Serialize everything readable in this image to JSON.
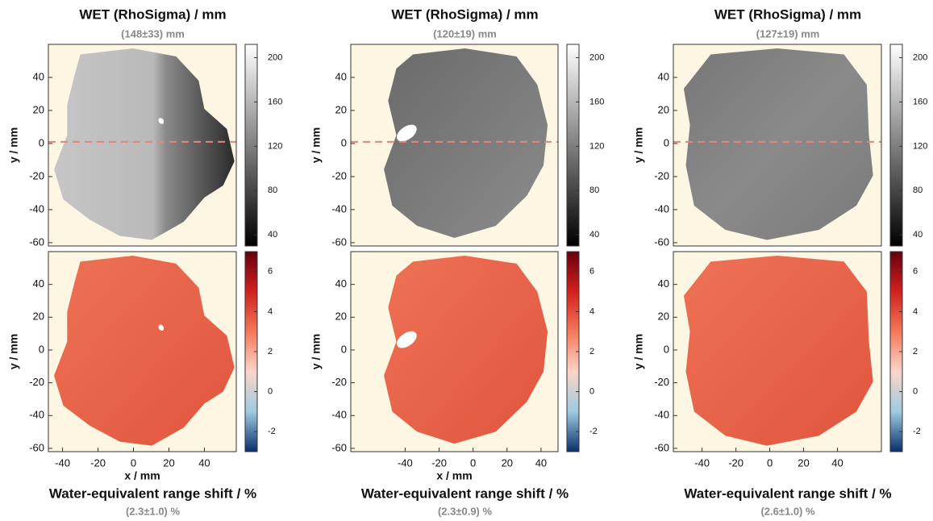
{
  "chart_data": [
    {
      "type": "heatmap",
      "title": "WET (RhoSigma) / mm",
      "subtitle": "(148±33) mm",
      "ylabel": "y / mm",
      "xlim": [
        -48,
        58
      ],
      "ylim": [
        -62,
        60
      ],
      "yticks": [
        -60,
        -40,
        -20,
        0,
        20,
        40
      ],
      "background": "#fdf6e3",
      "reference_line": {
        "y": 1,
        "color": "#e8837a"
      },
      "colorbar": {
        "clim": [
          30,
          212
        ],
        "ticks": [
          40,
          80,
          120,
          160,
          200
        ],
        "colors": [
          "#000000",
          "#ffffff"
        ]
      }
    },
    {
      "type": "heatmap",
      "title": "Water-equivalent range shift / %",
      "subtitle": "(2.3±1.0) %",
      "xlabel": "x / mm",
      "ylabel": "y / mm",
      "xlim": [
        -48,
        58
      ],
      "ylim": [
        -62,
        60
      ],
      "xticks": [
        -40,
        -20,
        0,
        20,
        40
      ],
      "yticks": [
        -60,
        -40,
        -20,
        0,
        20,
        40
      ],
      "background": "#fdf6e3",
      "colorbar": {
        "clim": [
          -3,
          7
        ],
        "ticks": [
          -2,
          0,
          2,
          4,
          6
        ],
        "colors": [
          "#08306b",
          "#9ecae1",
          "#fcd5c8",
          "#f4785a",
          "#d32020",
          "#67000d"
        ]
      }
    },
    {
      "type": "heatmap",
      "title": "WET (RhoSigma) / mm",
      "subtitle": "(120±19) mm",
      "ylabel": "y / mm",
      "xlim": [
        -72,
        50
      ],
      "ylim": [
        -62,
        60
      ],
      "yticks": [
        -60,
        -40,
        -20,
        0,
        20,
        40
      ],
      "background": "#fdf6e3",
      "reference_line": {
        "y": 1,
        "color": "#e8837a"
      },
      "colorbar": {
        "clim": [
          30,
          212
        ],
        "ticks": [
          40,
          80,
          120,
          160,
          200
        ],
        "colors": [
          "#000000",
          "#ffffff"
        ]
      }
    },
    {
      "type": "heatmap",
      "title": "Water-equivalent range shift / %",
      "subtitle": "(2.3±0.9) %",
      "xlabel": "x / mm",
      "ylabel": "y / mm",
      "xlim": [
        -72,
        50
      ],
      "ylim": [
        -62,
        60
      ],
      "xticks": [
        -40,
        -20,
        0,
        20,
        40
      ],
      "yticks": [
        -60,
        -40,
        -20,
        0,
        20,
        40
      ],
      "background": "#fdf6e3",
      "colorbar": {
        "clim": [
          -3,
          7
        ],
        "ticks": [
          -2,
          0,
          2,
          4,
          6
        ],
        "colors": [
          "#08306b",
          "#9ecae1",
          "#fcd5c8",
          "#f4785a",
          "#d32020",
          "#67000d"
        ]
      }
    },
    {
      "type": "heatmap",
      "title": "WET (RhoSigma) / mm",
      "subtitle": "(127±19) mm",
      "ylabel": "y / mm",
      "xlim": [
        -57,
        66
      ],
      "ylim": [
        -62,
        60
      ],
      "yticks": [
        -60,
        -40,
        -20,
        0,
        20,
        40
      ],
      "background": "#fdf6e3",
      "reference_line": {
        "y": 1,
        "color": "#e8837a"
      },
      "colorbar": {
        "clim": [
          30,
          212
        ],
        "ticks": [
          40,
          80,
          120,
          160,
          200
        ],
        "colors": [
          "#000000",
          "#ffffff"
        ]
      }
    },
    {
      "type": "heatmap",
      "title": "Water-equivalent range shift / %",
      "subtitle": "(2.6±1.0) %",
      "ylabel": "y / mm",
      "xlim": [
        -57,
        66
      ],
      "ylim": [
        -62,
        60
      ],
      "xticks": [
        -40,
        -20,
        0,
        20,
        40
      ],
      "yticks": [
        -60,
        -40,
        -20,
        0,
        20,
        40
      ],
      "background": "#fdf6e3",
      "colorbar": {
        "clim": [
          -3,
          7
        ],
        "ticks": [
          -2,
          0,
          2,
          4,
          6
        ],
        "colors": [
          "#08306b",
          "#9ecae1",
          "#fcd5c8",
          "#f4785a",
          "#d32020",
          "#67000d"
        ]
      }
    }
  ]
}
